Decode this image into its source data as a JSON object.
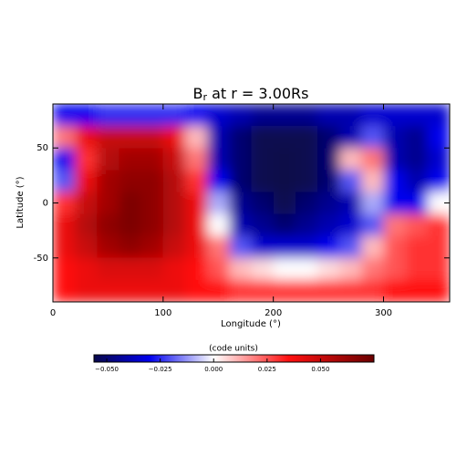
{
  "chart_data": {
    "type": "heatmap",
    "title": [
      "B",
      "r",
      " at r = 3.00Rs"
    ],
    "xlabel": "Longitude (°)",
    "ylabel": "Latitude (°)",
    "x": [
      10,
      30,
      50,
      70,
      90,
      110,
      130,
      150,
      170,
      190,
      210,
      230,
      250,
      270,
      290,
      310,
      330,
      350
    ],
    "y": [
      80,
      60,
      40,
      20,
      0,
      -20,
      -40,
      -60,
      -80
    ],
    "values": [
      [
        -0.03,
        -0.03,
        -0.025,
        -0.025,
        -0.025,
        -0.025,
        -0.03,
        -0.035,
        -0.04,
        -0.045,
        -0.045,
        -0.045,
        -0.04,
        -0.04,
        -0.035,
        -0.035,
        -0.035,
        -0.035
      ],
      [
        0.02,
        0.04,
        0.05,
        0.05,
        0.05,
        0.04,
        0.01,
        -0.04,
        -0.05,
        -0.055,
        -0.055,
        -0.055,
        -0.05,
        -0.04,
        -0.02,
        -0.04,
        -0.045,
        -0.03
      ],
      [
        -0.03,
        0.03,
        0.055,
        0.06,
        0.06,
        0.05,
        0.02,
        -0.04,
        -0.05,
        -0.055,
        -0.06,
        -0.055,
        -0.05,
        0.01,
        0.02,
        -0.04,
        -0.045,
        -0.035
      ],
      [
        -0.02,
        0.04,
        0.06,
        0.065,
        0.065,
        0.055,
        0.03,
        -0.03,
        -0.05,
        -0.055,
        -0.06,
        -0.055,
        -0.05,
        -0.02,
        0.01,
        -0.03,
        -0.04,
        -0.03
      ],
      [
        0.03,
        0.05,
        0.06,
        0.07,
        0.065,
        0.055,
        0.04,
        -0.01,
        -0.045,
        -0.05,
        -0.055,
        -0.05,
        -0.045,
        -0.04,
        -0.01,
        -0.03,
        -0.03,
        0.0
      ],
      [
        0.04,
        0.055,
        0.065,
        0.07,
        0.065,
        0.055,
        0.04,
        0.0,
        -0.04,
        -0.045,
        -0.05,
        -0.045,
        -0.04,
        -0.035,
        -0.02,
        0.02,
        0.025,
        0.03
      ],
      [
        0.04,
        0.05,
        0.06,
        0.065,
        0.06,
        0.05,
        0.04,
        0.02,
        -0.02,
        -0.035,
        -0.035,
        -0.035,
        -0.03,
        -0.02,
        0.01,
        0.025,
        0.03,
        0.03
      ],
      [
        0.035,
        0.04,
        0.045,
        0.045,
        0.045,
        0.04,
        0.035,
        0.025,
        0.01,
        0.005,
        0.0,
        0.0,
        0.005,
        0.01,
        0.02,
        0.025,
        0.03,
        0.03
      ],
      [
        0.035,
        0.04,
        0.04,
        0.04,
        0.04,
        0.04,
        0.035,
        0.035,
        0.03,
        0.03,
        0.03,
        0.03,
        0.03,
        0.03,
        0.03,
        0.035,
        0.035,
        0.035
      ]
    ],
    "xlim": [
      0,
      360
    ],
    "ylim": [
      -90,
      90
    ],
    "xticks": [
      0,
      100,
      200,
      300
    ],
    "yticks": [
      -50,
      0,
      50
    ],
    "colorbar_label": "(code units)",
    "clim": [
      -0.056,
      0.075
    ],
    "colorbar_ticks": [
      {
        "value": -0.05,
        "label": "−0.050"
      },
      {
        "value": -0.025,
        "label": "−0.025"
      },
      {
        "value": 0,
        "label": "0.000"
      },
      {
        "value": 0.025,
        "label": "0.025"
      },
      {
        "value": 0.05,
        "label": "0.050"
      }
    ],
    "colormap": [
      {
        "value": -0.056,
        "color": "#08084a"
      },
      {
        "value": -0.03,
        "color": "#0000ee"
      },
      {
        "value": 0,
        "color": "#ffffff"
      },
      {
        "value": 0.035,
        "color": "#ff1010"
      },
      {
        "value": 0.075,
        "color": "#6a0000"
      }
    ]
  }
}
